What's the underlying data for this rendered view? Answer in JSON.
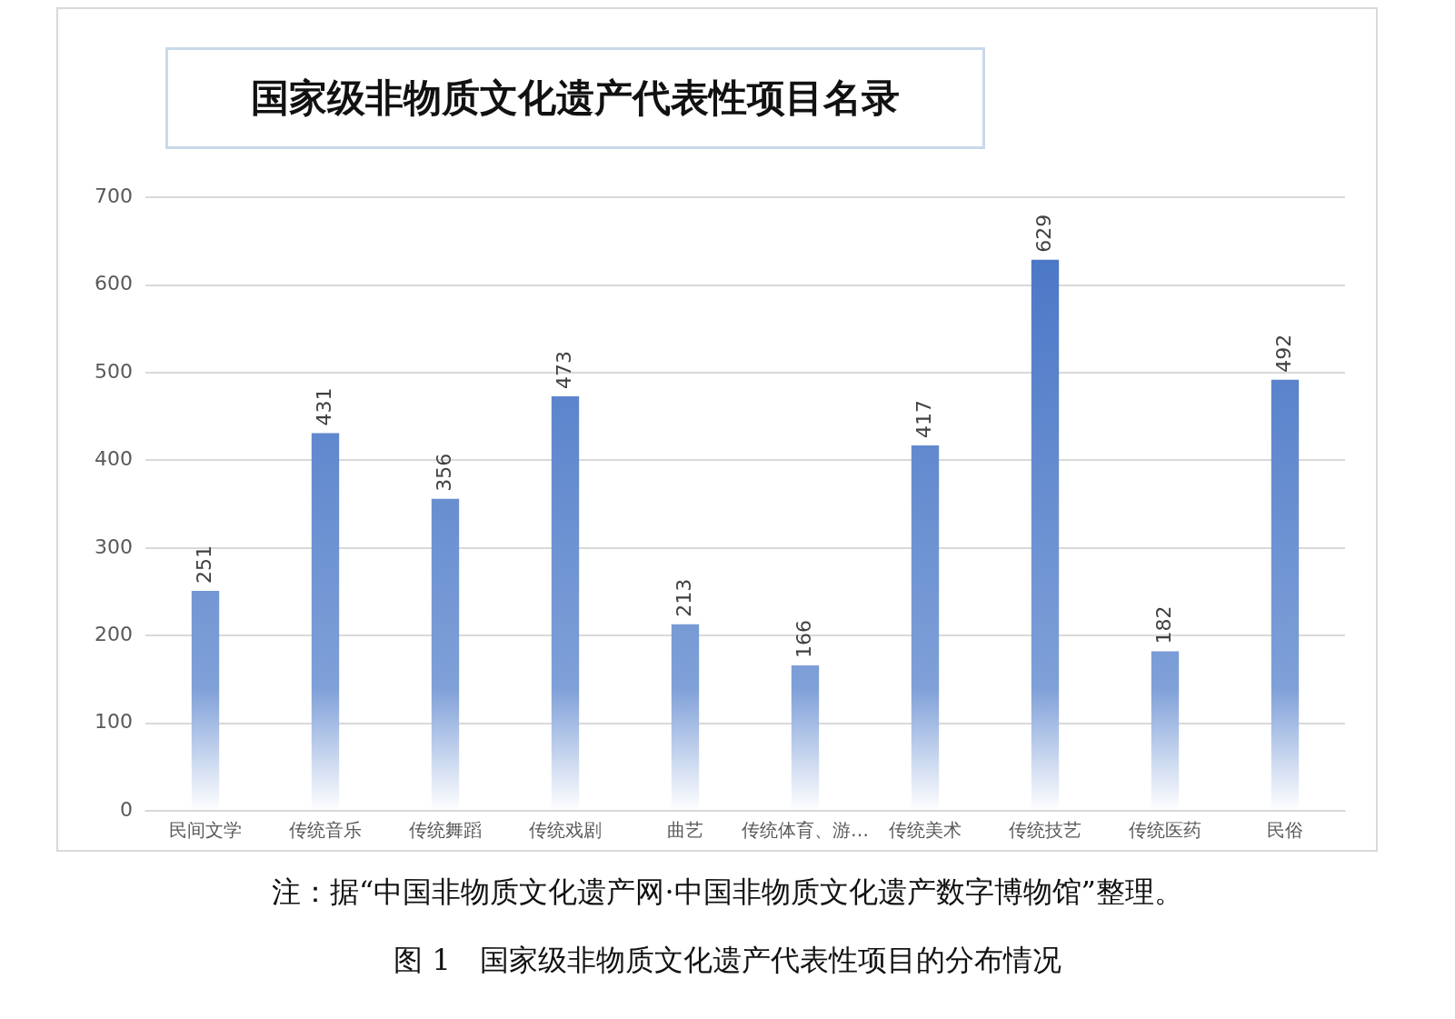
{
  "chart_data": {
    "type": "bar",
    "title": "国家级非物质文化遗产代表性项目名录",
    "categories": [
      "民间文学",
      "传统音乐",
      "传统舞蹈",
      "传统戏剧",
      "曲艺",
      "传统体育、游…",
      "传统美术",
      "传统技艺",
      "传统医药",
      "民俗"
    ],
    "values": [
      251,
      431,
      356,
      473,
      213,
      166,
      417,
      629,
      182,
      492
    ],
    "color": "#4472c4",
    "ylim": [
      0,
      700
    ],
    "yticks": [
      0,
      100,
      200,
      300,
      400,
      500,
      600,
      700
    ],
    "grid": "y",
    "legend": false,
    "data_labels": true,
    "annotations": [
      "注：据“中国非物质文化遗产网·中国非物质文化遗产数字博物馆”整理。",
      "图 1　国家级非物质文化遗产代表性项目的分布情况"
    ]
  }
}
